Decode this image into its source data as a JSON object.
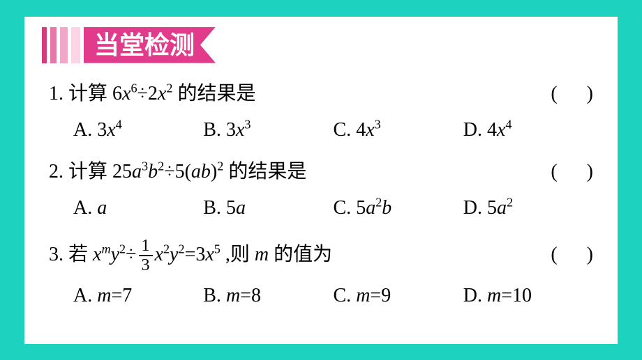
{
  "theme": {
    "page_background": "#1dd3c0",
    "card_background": "#ffffff",
    "title_background": "#e23b8b",
    "title_color": "#ffffff",
    "text_color": "#000000",
    "stripe_colors": [
      "#d43c7a",
      "#ffffff",
      "#e578a8",
      "#ffffff",
      "#f0a8c9",
      "#ffffff",
      "#f9d5e5",
      "#ffffff"
    ],
    "title_fontsize": 36,
    "body_fontsize": 28
  },
  "title": "当堂检测",
  "questions": [
    {
      "number": "1.",
      "prefix": "计算 ",
      "expression_html": "6<span class='math-var'>x</span><sup>6</sup>÷2<span class='math-var'>x</span><sup>2</sup>",
      "suffix": " 的结果是",
      "options": [
        {
          "label": "A.",
          "value_html": "3<span class='math-var'>x</span><sup>4</sup>"
        },
        {
          "label": "B.",
          "value_html": "3<span class='math-var'>x</span><sup>3</sup>"
        },
        {
          "label": "C.",
          "value_html": "4<span class='math-var'>x</span><sup>3</sup>"
        },
        {
          "label": "D.",
          "value_html": "4<span class='math-var'>x</span><sup>4</sup>"
        }
      ]
    },
    {
      "number": "2.",
      "prefix": "计算 ",
      "expression_html": "25<span class='math-var'>a</span><sup>3</sup><span class='math-var'>b</span><sup>2</sup>÷5(<span class='math-var'>ab</span>)<sup>2</sup>",
      "suffix": " 的结果是",
      "options": [
        {
          "label": "A.",
          "value_html": "<span class='math-var'>a</span>"
        },
        {
          "label": "B.",
          "value_html": "5<span class='math-var'>a</span>"
        },
        {
          "label": "C.",
          "value_html": "5<span class='math-var'>a</span><sup>2</sup><span class='math-var'>b</span>"
        },
        {
          "label": "D.",
          "value_html": "5<span class='math-var'>a</span><sup>2</sup>"
        }
      ]
    },
    {
      "number": "3.",
      "prefix": "若 ",
      "expression_html": "<span class='math-var'>x</span><sup><span class='math-var'>m</span></sup><span class='math-var'>y</span><sup>2</sup>÷<span class='frac'><span class='frac-num'>1</span><span class='frac-den'>3</span></span><span class='math-var'>x</span><sup>2</sup><span class='math-var'>y</span><sup>2</sup>=3<span class='math-var'>x</span><sup>5</sup>",
      "suffix": " ,则 <span class='math-var'>m</span> 的值为",
      "options": [
        {
          "label": "A.",
          "value_html": "<span class='math-var'>m</span>=7"
        },
        {
          "label": "B.",
          "value_html": "<span class='math-var'>m</span>=8"
        },
        {
          "label": "C.",
          "value_html": "<span class='math-var'>m</span>=9"
        },
        {
          "label": "D.",
          "value_html": "<span class='math-var'>m</span>=10"
        }
      ]
    }
  ],
  "paren_text": "(      )"
}
